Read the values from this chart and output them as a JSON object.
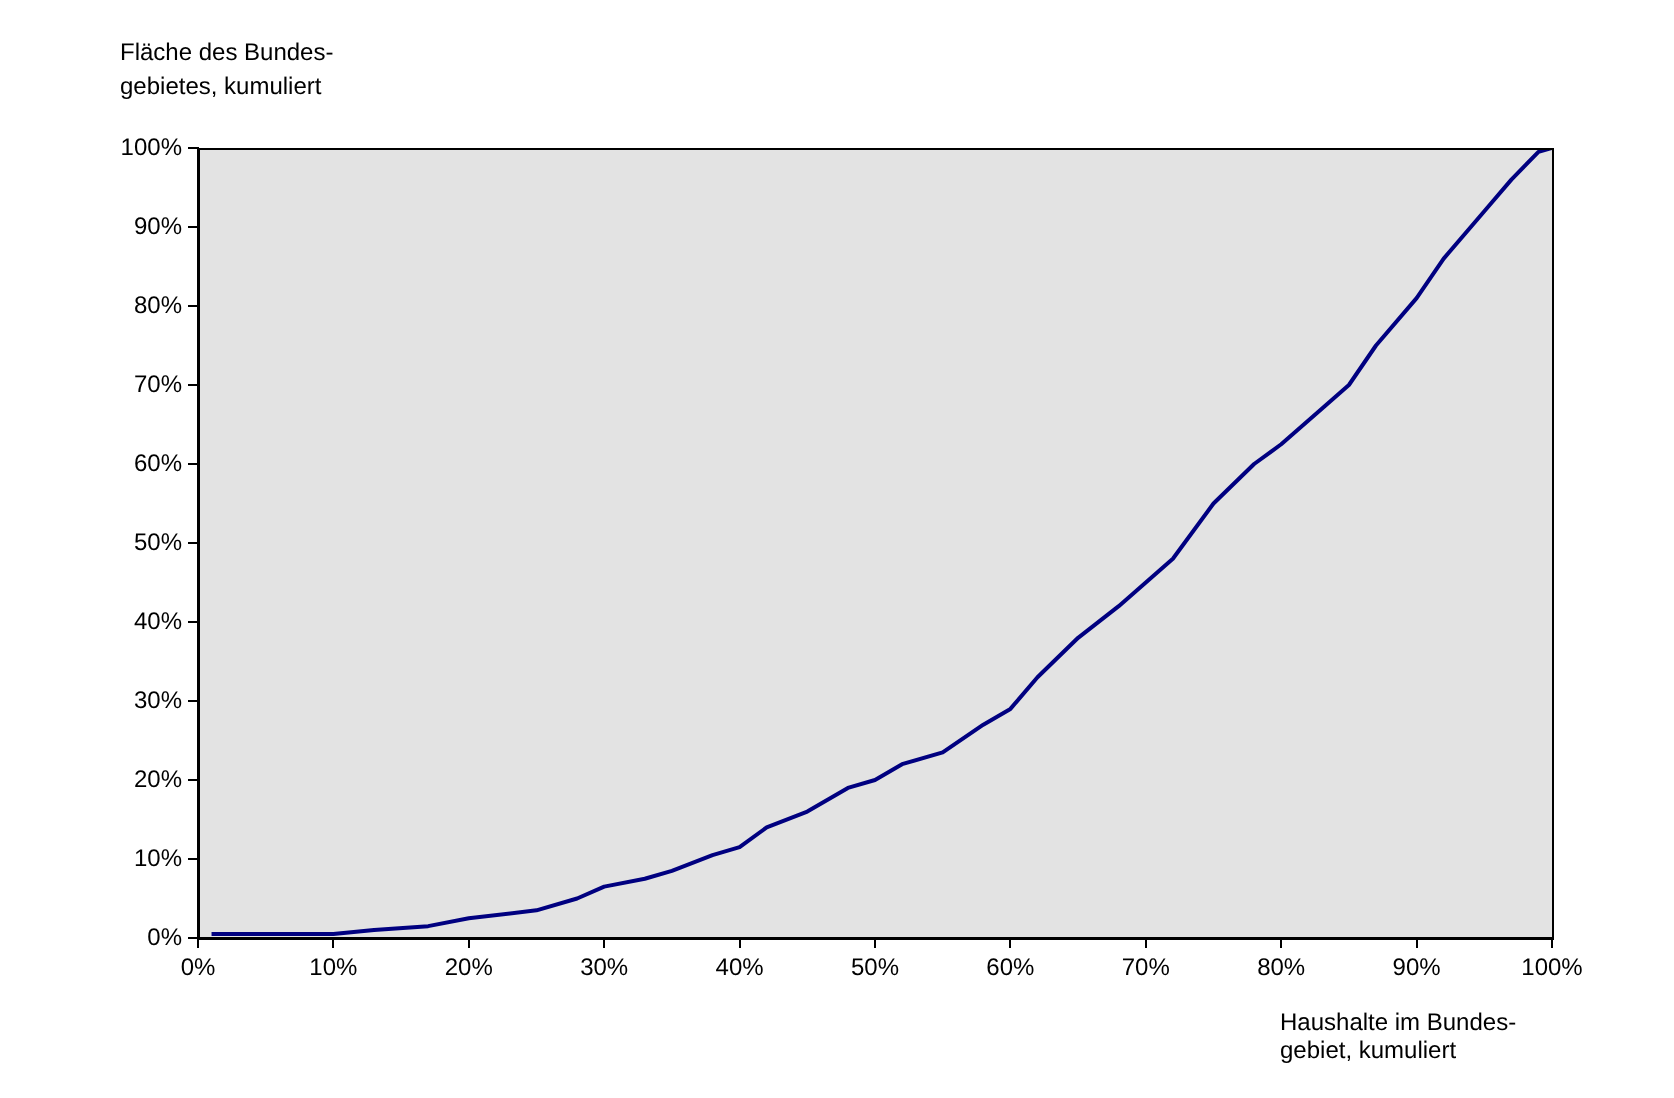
{
  "chart_data": {
    "type": "line",
    "ylabel": "Fläche des Bundes-\ngebietes, kumuliert",
    "xlabel": "Haushalte im Bundes-\ngebiet, kumuliert",
    "x": [
      1,
      10,
      13,
      17,
      20,
      25,
      28,
      30,
      33,
      35,
      38,
      40,
      42,
      45,
      48,
      50,
      52,
      55,
      58,
      60,
      62,
      65,
      68,
      70,
      72,
      75,
      78,
      80,
      83,
      85,
      87,
      90,
      92,
      95,
      97,
      99,
      100
    ],
    "series": [
      {
        "color": "#000080",
        "values": [
          0.5,
          0.5,
          1,
          1.5,
          2.5,
          3.5,
          5,
          6.5,
          7.5,
          8.5,
          10.5,
          11.5,
          14,
          16,
          19,
          20,
          22,
          23.5,
          27,
          29,
          33,
          38,
          42,
          45,
          48,
          55,
          60,
          62.5,
          67,
          70,
          75,
          81,
          86,
          92,
          96,
          99.5,
          100
        ]
      }
    ],
    "xlim": [
      0,
      100
    ],
    "ylim": [
      0,
      100
    ],
    "xticks": [
      {
        "value": 0,
        "label": "0%"
      },
      {
        "value": 10,
        "label": "10%"
      },
      {
        "value": 20,
        "label": "20%"
      },
      {
        "value": 30,
        "label": "30%"
      },
      {
        "value": 40,
        "label": "40%"
      },
      {
        "value": 50,
        "label": "50%"
      },
      {
        "value": 60,
        "label": "60%"
      },
      {
        "value": 70,
        "label": "70%"
      },
      {
        "value": 80,
        "label": "80%"
      },
      {
        "value": 90,
        "label": "90%"
      },
      {
        "value": 100,
        "label": "100%"
      }
    ],
    "yticks": [
      {
        "value": 0,
        "label": "0%"
      },
      {
        "value": 10,
        "label": "10%"
      },
      {
        "value": 20,
        "label": "20%"
      },
      {
        "value": 30,
        "label": "30%"
      },
      {
        "value": 40,
        "label": "40%"
      },
      {
        "value": 50,
        "label": "50%"
      },
      {
        "value": 60,
        "label": "60%"
      },
      {
        "value": 70,
        "label": "70%"
      },
      {
        "value": 80,
        "label": "80%"
      },
      {
        "value": 90,
        "label": "90%"
      },
      {
        "value": 100,
        "label": "100%"
      }
    ],
    "grid": false,
    "legend": false,
    "marker": "none"
  }
}
